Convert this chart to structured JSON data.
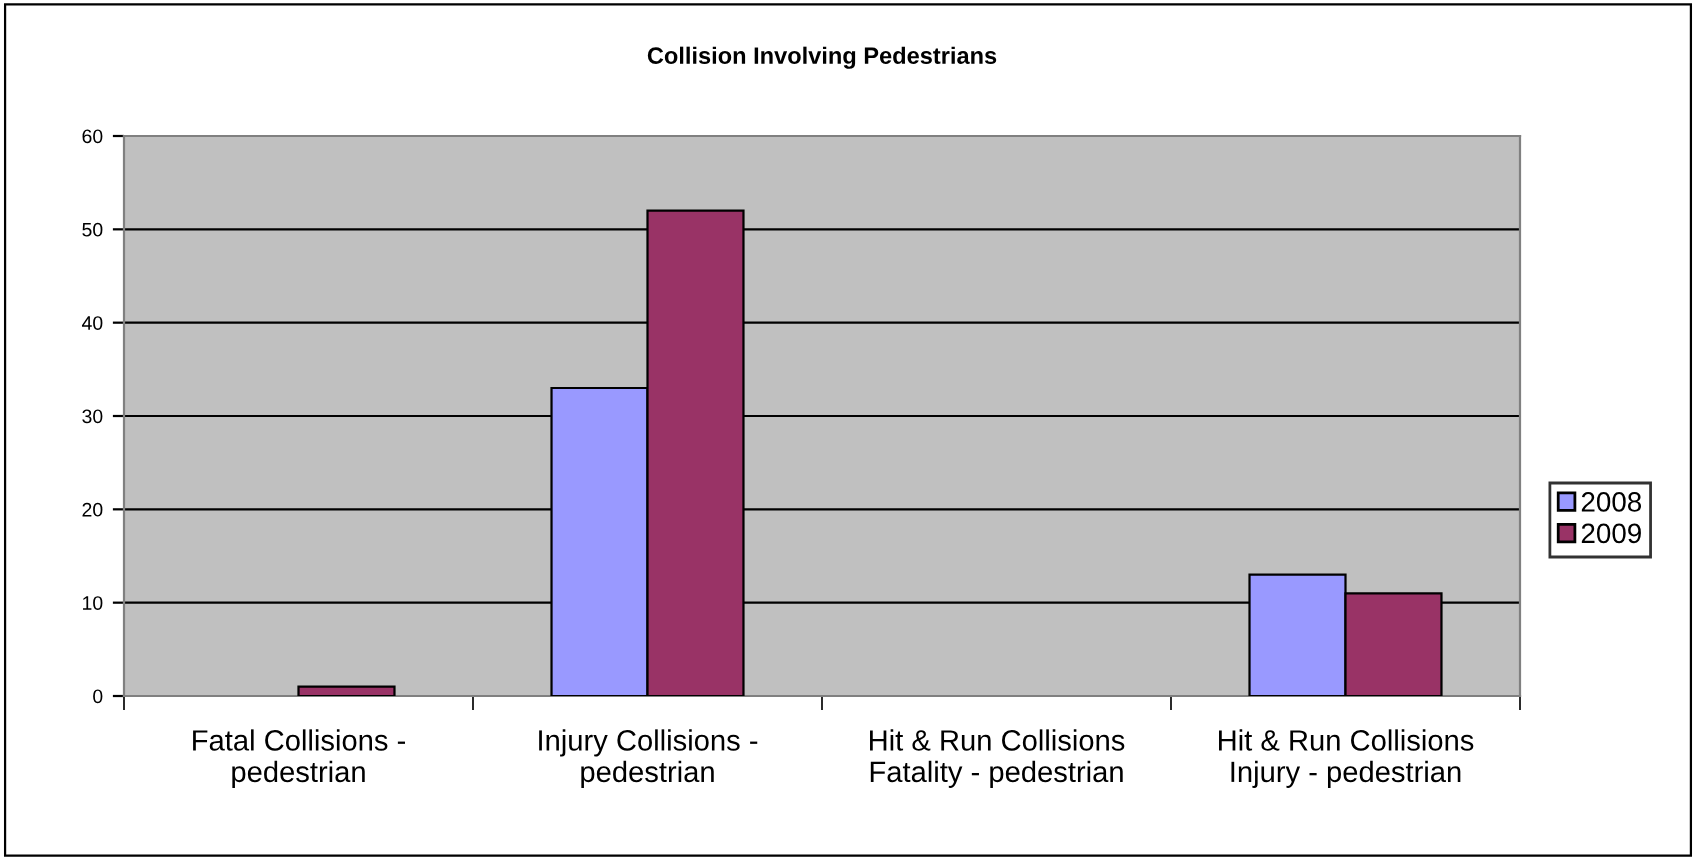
{
  "chart_data": {
    "type": "bar",
    "title": "Collision Involving Pedestrians",
    "categories": [
      "Fatal Collisions -\npedestrian",
      "Injury Collisions -\npedestrian",
      "Hit & Run Collisions\nFatality - pedestrian",
      "Hit & Run Collisions\nInjury - pedestrian"
    ],
    "series": [
      {
        "name": "2008",
        "color": "#9999ff",
        "values": [
          0,
          33,
          0,
          13
        ]
      },
      {
        "name": "2009",
        "color": "#993366",
        "values": [
          1,
          52,
          0,
          11
        ]
      }
    ],
    "ylim": [
      0,
      60
    ],
    "yticks": [
      0,
      10,
      20,
      30,
      40,
      50,
      60
    ],
    "grid": "y",
    "legend": "right"
  }
}
